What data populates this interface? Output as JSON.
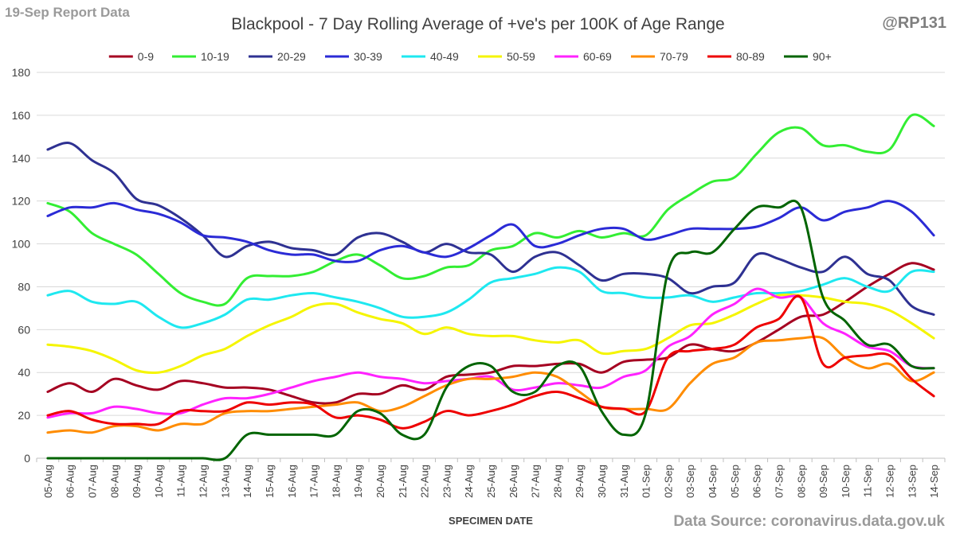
{
  "header": {
    "report_label": "19-Sep Report Data",
    "handle": "@RP131",
    "source": "Data Source: coronavirus.data.gov.uk"
  },
  "chart_data": {
    "type": "line",
    "title": "Blackpool - 7 Day Rolling Average of +ve's per 100K of Age Range",
    "xlabel": "SPECIMEN DATE",
    "ylabel": "",
    "ylim": [
      0,
      180
    ],
    "yticks": [
      0,
      20,
      40,
      60,
      80,
      100,
      120,
      140,
      160,
      180
    ],
    "grid": true,
    "legend": "top",
    "categories": [
      "05-Aug",
      "06-Aug",
      "07-Aug",
      "08-Aug",
      "09-Aug",
      "10-Aug",
      "11-Aug",
      "12-Aug",
      "13-Aug",
      "14-Aug",
      "15-Aug",
      "16-Aug",
      "17-Aug",
      "18-Aug",
      "19-Aug",
      "20-Aug",
      "21-Aug",
      "22-Aug",
      "23-Aug",
      "24-Aug",
      "25-Aug",
      "26-Aug",
      "27-Aug",
      "28-Aug",
      "29-Aug",
      "30-Aug",
      "31-Aug",
      "01-Sep",
      "02-Sep",
      "03-Sep",
      "04-Sep",
      "05-Sep",
      "06-Sep",
      "07-Sep",
      "08-Sep",
      "09-Sep",
      "10-Sep",
      "11-Sep",
      "12-Sep",
      "13-Sep",
      "14-Sep"
    ],
    "series": [
      {
        "name": "0-9",
        "color": "#a50021",
        "values": [
          31,
          35,
          31,
          37,
          34,
          32,
          36,
          35,
          33,
          33,
          32,
          29,
          26,
          26,
          30,
          30,
          34,
          32,
          38,
          39,
          40,
          43,
          43,
          44,
          44,
          40,
          45,
          46,
          47,
          53,
          51,
          50,
          54,
          60,
          66,
          67,
          73,
          80,
          86,
          91,
          88
        ]
      },
      {
        "name": "10-19",
        "color": "#33ee33",
        "values": [
          119,
          115,
          105,
          100,
          95,
          86,
          77,
          73,
          72,
          84,
          85,
          85,
          87,
          92,
          95,
          90,
          84,
          85,
          89,
          90,
          97,
          99,
          105,
          103,
          106,
          103,
          105,
          104,
          116,
          123,
          129,
          131,
          142,
          152,
          154,
          146,
          146,
          143,
          144,
          160,
          155
        ]
      },
      {
        "name": "20-29",
        "color": "#2e3192",
        "values": [
          144,
          147,
          139,
          133,
          121,
          118,
          112,
          104,
          94,
          99,
          101,
          98,
          97,
          95,
          103,
          105,
          101,
          96,
          100,
          96,
          95,
          87,
          94,
          96,
          90,
          83,
          86,
          86,
          84,
          77,
          80,
          82,
          95,
          93,
          89,
          87,
          94,
          86,
          83,
          71,
          67
        ]
      },
      {
        "name": "30-39",
        "color": "#2b2bd6",
        "values": [
          113,
          117,
          117,
          119,
          116,
          114,
          110,
          104,
          103,
          101,
          97,
          95,
          95,
          92,
          92,
          97,
          99,
          96,
          94,
          98,
          104,
          109,
          99,
          100,
          104,
          107,
          107,
          102,
          104,
          107,
          107,
          107,
          108,
          112,
          117,
          111,
          115,
          117,
          120,
          115,
          104
        ]
      },
      {
        "name": "40-49",
        "color": "#1ee8f0",
        "values": [
          76,
          78,
          73,
          72,
          73,
          66,
          61,
          63,
          67,
          74,
          74,
          76,
          77,
          75,
          73,
          70,
          66,
          66,
          68,
          74,
          82,
          84,
          86,
          89,
          87,
          78,
          77,
          75,
          75,
          76,
          73,
          75,
          77,
          77,
          78,
          81,
          84,
          80,
          78,
          87,
          87
        ]
      },
      {
        "name": "50-59",
        "color": "#f5f500",
        "values": [
          53,
          52,
          50,
          46,
          41,
          40,
          43,
          48,
          51,
          57,
          62,
          66,
          71,
          72,
          68,
          65,
          63,
          58,
          61,
          58,
          57,
          57,
          55,
          54,
          55,
          49,
          50,
          51,
          56,
          62,
          63,
          67,
          72,
          76,
          76,
          75,
          73,
          72,
          69,
          63,
          56
        ]
      },
      {
        "name": "60-69",
        "color": "#ff22ff",
        "values": [
          19,
          21,
          21,
          24,
          23,
          21,
          21,
          25,
          28,
          28,
          30,
          33,
          36,
          38,
          40,
          38,
          37,
          35,
          36,
          37,
          38,
          32,
          33,
          35,
          34,
          33,
          38,
          41,
          52,
          57,
          67,
          72,
          79,
          75,
          75,
          63,
          58,
          52,
          50,
          43,
          42
        ]
      },
      {
        "name": "70-79",
        "color": "#ff8c00",
        "values": [
          12,
          13,
          12,
          15,
          15,
          13,
          16,
          16,
          21,
          22,
          22,
          23,
          24,
          25,
          26,
          22,
          24,
          29,
          34,
          37,
          37,
          38,
          40,
          38,
          31,
          24,
          23,
          23,
          23,
          35,
          44,
          47,
          54,
          55,
          56,
          56,
          47,
          42,
          44,
          36,
          40
        ]
      },
      {
        "name": "80-89",
        "color": "#ee0000",
        "values": [
          20,
          22,
          18,
          16,
          16,
          16,
          22,
          22,
          22,
          26,
          25,
          26,
          25,
          19,
          20,
          18,
          14,
          17,
          22,
          20,
          22,
          25,
          29,
          31,
          28,
          24,
          23,
          22,
          47,
          50,
          51,
          53,
          61,
          65,
          75,
          44,
          47,
          48,
          48,
          37,
          29
        ]
      },
      {
        "name": "90+",
        "color": "#006400",
        "values": [
          0,
          0,
          0,
          0,
          0,
          0,
          0,
          0,
          0,
          11,
          11,
          11,
          11,
          11,
          22,
          21,
          11,
          11,
          33,
          43,
          43,
          31,
          31,
          43,
          43,
          22,
          11,
          21,
          87,
          96,
          96,
          107,
          117,
          117,
          117,
          75,
          64,
          53,
          53,
          43,
          42
        ]
      }
    ]
  }
}
